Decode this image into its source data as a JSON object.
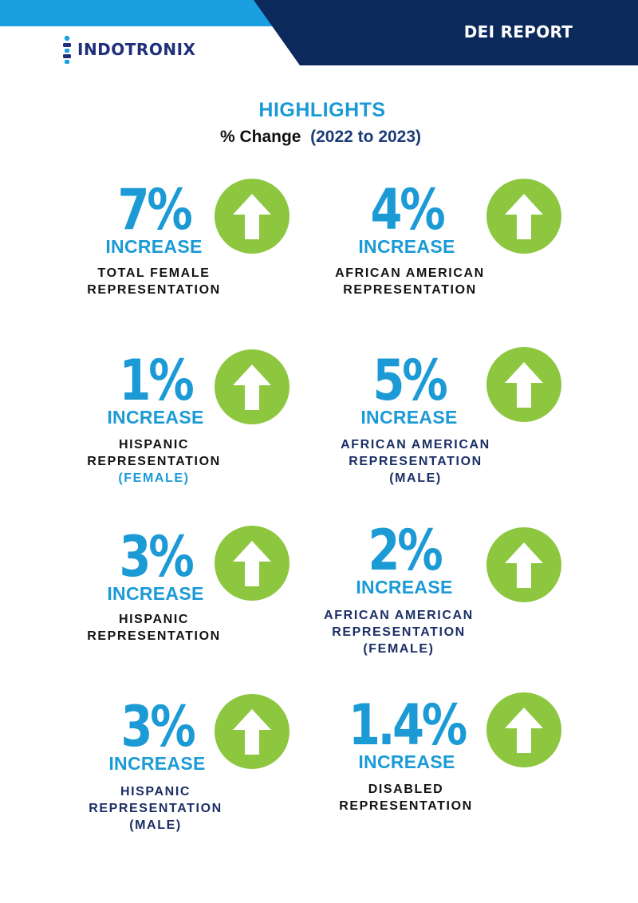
{
  "header": {
    "report_title": "DEI REPORT",
    "logo_text": "INDOTRONIX",
    "colors": {
      "navy": "#0b2a5b",
      "sky": "#1aa0e0"
    }
  },
  "highlights": {
    "title": "HIGHLIGHTS",
    "subtitle_prefix": "% Change",
    "subtitle_years": "(2022 to 2023)"
  },
  "colors": {
    "accent_blue": "#1b9ad6",
    "arrow_green": "#8dc63f",
    "label_navy": "#1b2f66"
  },
  "stats": [
    {
      "value": "7%",
      "change": "INCREASE",
      "label_lines": [
        "TOTAL FEMALE",
        "REPRESENTATION"
      ],
      "qualifier": ""
    },
    {
      "value": "4%",
      "change": "INCREASE",
      "label_lines": [
        "AFRICAN AMERICAN",
        "REPRESENTATION"
      ],
      "qualifier": ""
    },
    {
      "value": "1%",
      "change": "INCREASE",
      "label_lines": [
        "HISPANIC",
        "REPRESENTATION"
      ],
      "qualifier": "(FEMALE)"
    },
    {
      "value": "5%",
      "change": "INCREASE",
      "label_lines": [
        "AFRICAN AMERICAN",
        "REPRESENTATION"
      ],
      "qualifier": "(MALE)"
    },
    {
      "value": "3%",
      "change": "INCREASE",
      "label_lines": [
        "HISPANIC",
        "REPRESENTATION"
      ],
      "qualifier": ""
    },
    {
      "value": "2%",
      "change": "INCREASE",
      "label_lines": [
        "AFRICAN AMERICAN",
        "REPRESENTATION"
      ],
      "qualifier": "(FEMALE)"
    },
    {
      "value": "3%",
      "change": "INCREASE",
      "label_lines": [
        "HISPANIC",
        "REPRESENTATION"
      ],
      "qualifier": "(MALE)"
    },
    {
      "value": "1.4%",
      "change": "INCREASE",
      "label_lines": [
        "DISABLED",
        "REPRESENTATION"
      ],
      "qualifier": ""
    }
  ],
  "icons": {
    "trend": "arrow-up-circle-icon",
    "logo": "indotronix-logo-mark"
  }
}
